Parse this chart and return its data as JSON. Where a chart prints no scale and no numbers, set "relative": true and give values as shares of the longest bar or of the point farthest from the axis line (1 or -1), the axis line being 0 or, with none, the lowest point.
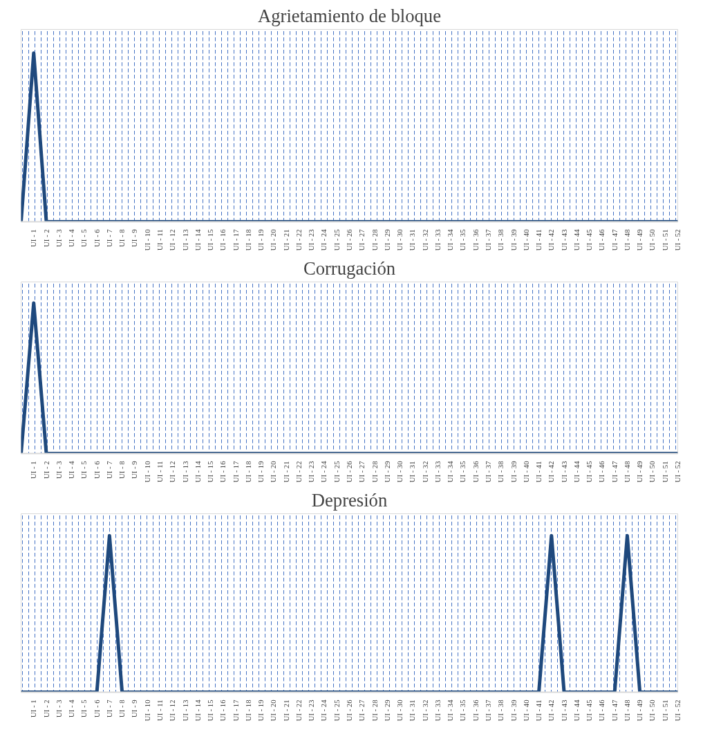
{
  "chart_data": [
    {
      "type": "line",
      "title": "Agrietamiento de bloque",
      "relative": true,
      "categories": [
        null,
        "UI - 1",
        "UI - 2",
        "UI - 3",
        "UI - 4",
        "UI - 5",
        "UI - 6",
        "UI - 7",
        "UI - 8",
        "UI - 9",
        "UI - 10",
        "UI - 11",
        "UI - 12",
        "UI - 13",
        "UI - 14",
        "UI - 15",
        "UI - 16",
        "UI - 17",
        "UI - 18",
        "UI - 19",
        "UI - 20",
        "UI - 21",
        "UI - 22",
        "UI - 23",
        "UI - 24",
        "UI - 25",
        "UI - 26",
        "UI - 27",
        "UI - 28",
        "UI - 29",
        "UI - 30",
        "UI - 31",
        "UI - 32",
        "UI - 33",
        "UI - 34",
        "UI - 35",
        "UI - 36",
        "UI - 37",
        "UI - 38",
        "UI - 39",
        "UI - 40",
        "UI - 41",
        "UI - 42",
        "UI - 43",
        "UI - 44",
        "UI - 45",
        "UI - 46",
        "UI - 47",
        "UI - 48",
        "UI - 49",
        "UI - 50",
        "UI - 51",
        "UI - 52"
      ],
      "series": [
        {
          "color": "#1f497d",
          "values": [
            0,
            1,
            0,
            0,
            0,
            0,
            0,
            0,
            0,
            0,
            0,
            0,
            0,
            0,
            0,
            0,
            0,
            0,
            0,
            0,
            0,
            0,
            0,
            0,
            0,
            0,
            0,
            0,
            0,
            0,
            0,
            0,
            0,
            0,
            0,
            0,
            0,
            0,
            0,
            0,
            0,
            0,
            0,
            0,
            0,
            0,
            0,
            0,
            0,
            0,
            0,
            0,
            0
          ]
        }
      ]
    },
    {
      "type": "line",
      "title": "Corrugación",
      "relative": true,
      "categories": [
        null,
        "UI - 1",
        "UI - 2",
        "UI - 3",
        "UI - 4",
        "UI - 5",
        "UI - 6",
        "UI - 7",
        "UI - 8",
        "UI - 9",
        "UI - 10",
        "UI - 11",
        "UI - 12",
        "UI - 13",
        "UI - 14",
        "UI - 15",
        "UI - 16",
        "UI - 17",
        "UI - 18",
        "UI - 19",
        "UI - 20",
        "UI - 21",
        "UI - 22",
        "UI - 23",
        "UI - 24",
        "UI - 25",
        "UI - 26",
        "UI - 27",
        "UI - 28",
        "UI - 29",
        "UI - 30",
        "UI - 31",
        "UI - 32",
        "UI - 33",
        "UI - 34",
        "UI - 35",
        "UI - 36",
        "UI - 37",
        "UI - 38",
        "UI - 39",
        "UI - 40",
        "UI - 41",
        "UI - 42",
        "UI - 43",
        "UI - 44",
        "UI - 45",
        "UI - 46",
        "UI - 47",
        "UI - 48",
        "UI - 49",
        "UI - 50",
        "UI - 51",
        "UI - 52"
      ],
      "series": [
        {
          "color": "#1f497d",
          "values": [
            0,
            1,
            0,
            0,
            0,
            0,
            0,
            0,
            0,
            0,
            0,
            0,
            0,
            0,
            0,
            0,
            0,
            0,
            0,
            0,
            0,
            0,
            0,
            0,
            0,
            0,
            0,
            0,
            0,
            0,
            0,
            0,
            0,
            0,
            0,
            0,
            0,
            0,
            0,
            0,
            0,
            0,
            0,
            0,
            0,
            0,
            0,
            0,
            0,
            0,
            0,
            0,
            0
          ]
        }
      ]
    },
    {
      "type": "line",
      "title": "Depresión",
      "relative": true,
      "categories": [
        null,
        "UI - 1",
        "UI - 2",
        "UI - 3",
        "UI - 4",
        "UI - 5",
        "UI - 6",
        "UI - 7",
        "UI - 8",
        "UI - 9",
        "UI - 10",
        "UI - 11",
        "UI - 12",
        "UI - 13",
        "UI - 14",
        "UI - 15",
        "UI - 16",
        "UI - 17",
        "UI - 18",
        "UI - 19",
        "UI - 20",
        "UI - 21",
        "UI - 22",
        "UI - 23",
        "UI - 24",
        "UI - 25",
        "UI - 26",
        "UI - 27",
        "UI - 28",
        "UI - 29",
        "UI - 30",
        "UI - 31",
        "UI - 32",
        "UI - 33",
        "UI - 34",
        "UI - 35",
        "UI - 36",
        "UI - 37",
        "UI - 38",
        "UI - 39",
        "UI - 40",
        "UI - 41",
        "UI - 42",
        "UI - 43",
        "UI - 44",
        "UI - 45",
        "UI - 46",
        "UI - 47",
        "UI - 48",
        "UI - 49",
        "UI - 50",
        "UI - 51",
        "UI - 52"
      ],
      "series": [
        {
          "color": "#1f497d",
          "values": [
            0,
            0,
            0,
            0,
            0,
            0,
            0,
            1,
            0,
            0,
            0,
            0,
            0,
            0,
            0,
            0,
            0,
            0,
            0,
            0,
            0,
            0,
            0,
            0,
            0,
            0,
            0,
            0,
            0,
            0,
            0,
            0,
            0,
            0,
            0,
            0,
            0,
            0,
            0,
            0,
            0,
            0,
            1,
            0,
            0,
            0,
            0,
            0,
            1,
            0,
            0,
            0,
            0
          ]
        }
      ]
    }
  ]
}
